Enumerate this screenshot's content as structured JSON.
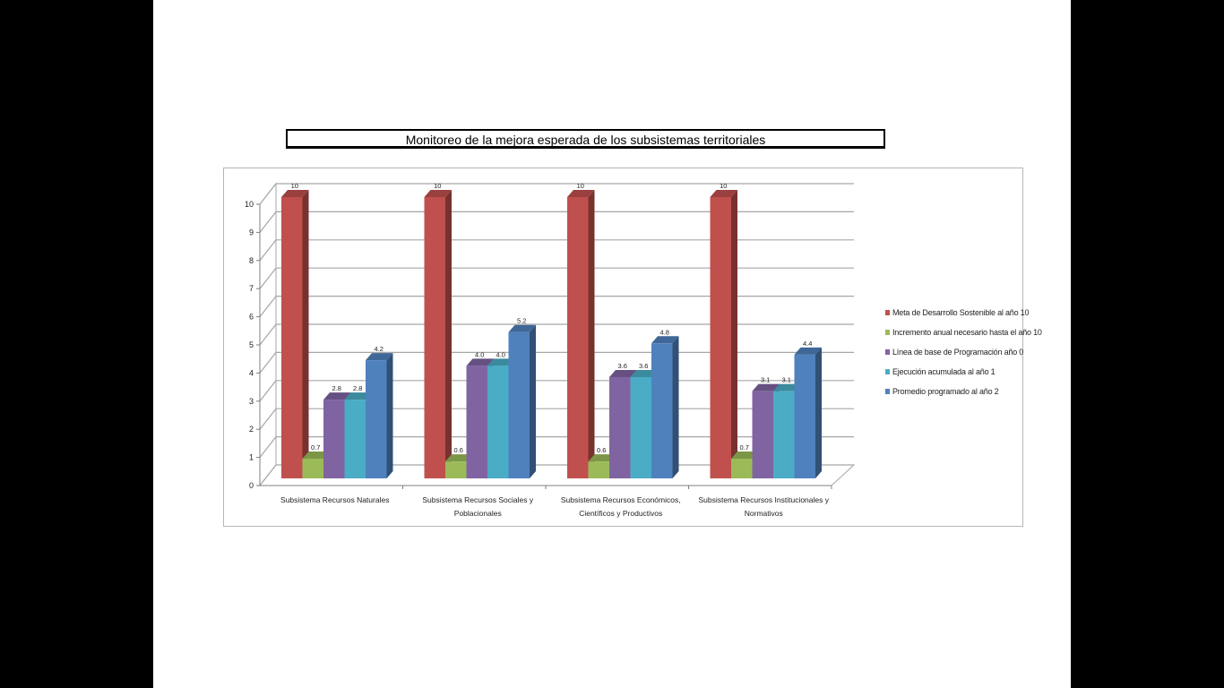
{
  "title": "Monitoreo de la mejora esperada de los subsistemas territoriales",
  "chart_data": {
    "type": "bar",
    "title": "Monitoreo de la mejora esperada de los subsistemas territoriales",
    "xlabel": "",
    "ylabel": "",
    "ylim": [
      0,
      10
    ],
    "yticks": [
      0,
      1,
      2,
      3,
      4,
      5,
      6,
      7,
      8,
      9,
      10
    ],
    "grid": true,
    "legend_position": "right",
    "categories": [
      [
        "Subsistema Recursos Naturales"
      ],
      [
        "Subsistema Recursos Sociales y",
        "Poblacionales"
      ],
      [
        "Subsistema Recursos Económicos,",
        "Científicos y Productivos"
      ],
      [
        "Subsistema Recursos Institucionales y",
        "Normativos"
      ]
    ],
    "series": [
      {
        "name": "Meta de Desarrollo Sostenible al año 10",
        "color": "#c0504d",
        "values": [
          10,
          10,
          10,
          10
        ],
        "labels": [
          "10",
          "10",
          "10",
          "10"
        ]
      },
      {
        "name": "Incremento anual necesario hasta el año 10",
        "color": "#9bbb59",
        "values": [
          0.7,
          0.6,
          0.6,
          0.7
        ],
        "labels": [
          "0.7",
          "0.6",
          "0.6",
          "0.7"
        ]
      },
      {
        "name": "Línea de base de Programación año 0",
        "color": "#8064a2",
        "values": [
          2.8,
          4.0,
          3.6,
          3.1
        ],
        "labels": [
          "2.8",
          "4.0",
          "3.6",
          "3.1"
        ]
      },
      {
        "name": "Ejecución acumulada al año 1",
        "color": "#4bacc6",
        "values": [
          2.8,
          4.0,
          3.6,
          3.1
        ],
        "labels": [
          "2.8",
          "4.0",
          "3.6",
          "3.1"
        ]
      },
      {
        "name": "Promedio programado al año 2",
        "color": "#4f81bd",
        "values": [
          4.2,
          5.2,
          4.8,
          4.4
        ],
        "labels": [
          "4.2",
          "5.2",
          "4.8",
          "4.4"
        ]
      }
    ]
  }
}
